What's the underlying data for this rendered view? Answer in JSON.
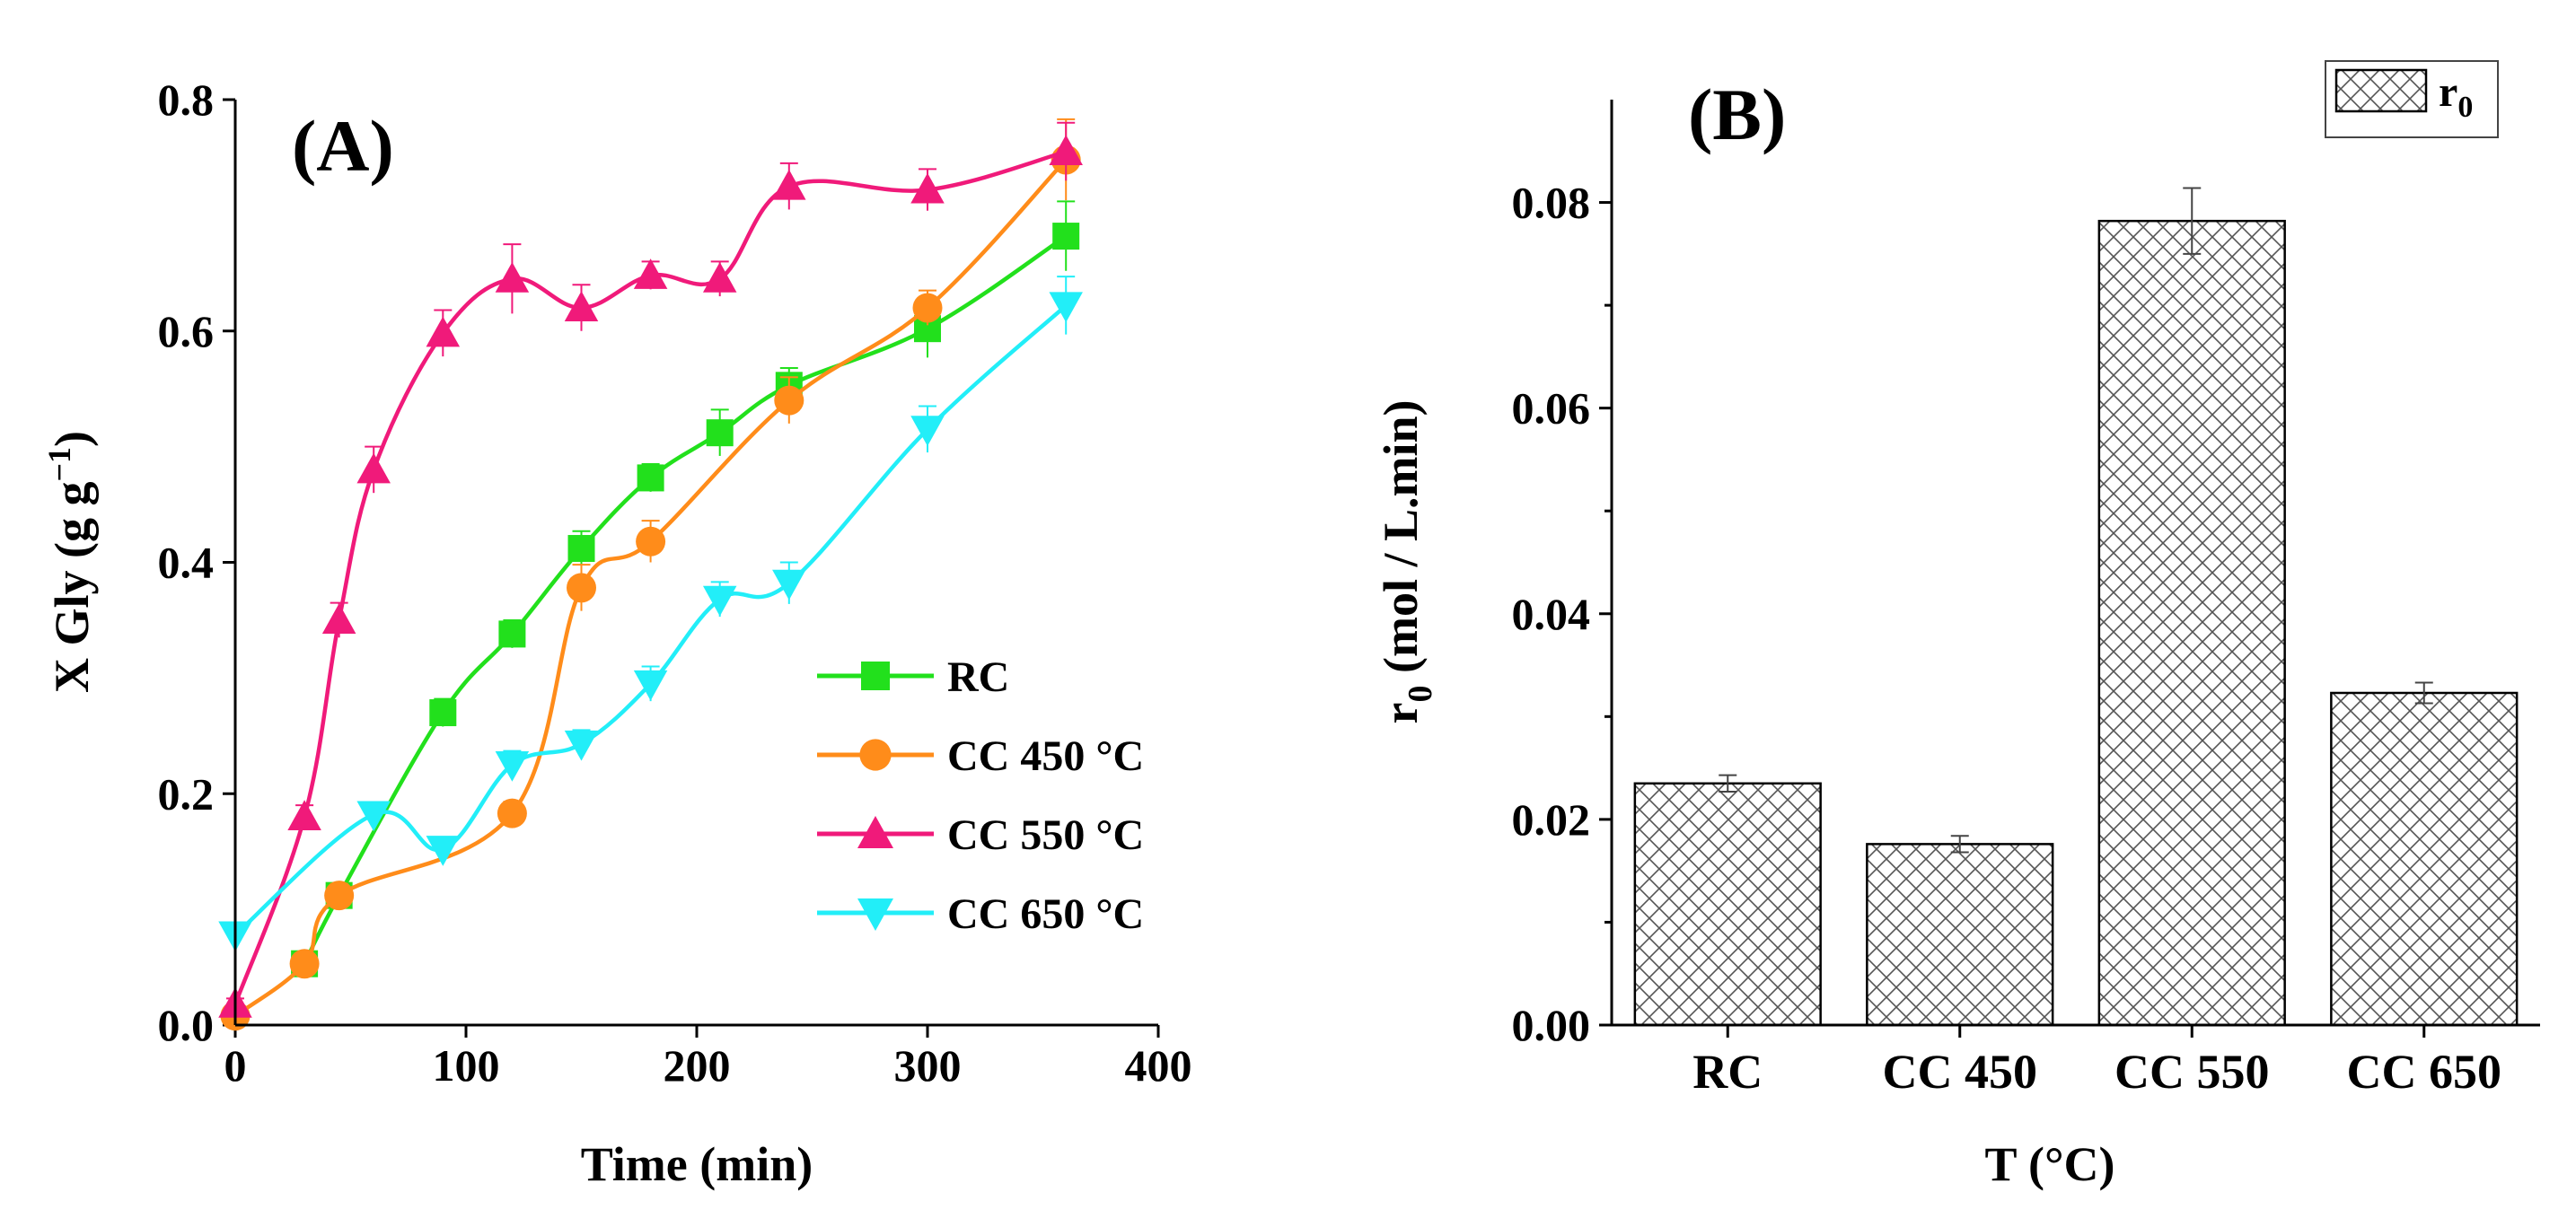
{
  "chart_data": [
    {
      "panel_label": "(A)",
      "type": "line",
      "title": "",
      "xlabel": "Time (min)",
      "ylabel": "X Gly (g g",
      "ylabel_sup": "−1",
      "ylabel_end": ")",
      "xlim": [
        0,
        400
      ],
      "ylim": [
        0,
        0.8
      ],
      "xticks": [
        0,
        100,
        200,
        300,
        400
      ],
      "yticks": [
        0.0,
        0.2,
        0.4,
        0.6,
        0.8
      ],
      "xtick_labels": [
        "0",
        "100",
        "200",
        "300",
        "400"
      ],
      "ytick_labels": [
        "0.0",
        "0.2",
        "0.4",
        "0.6",
        "0.8"
      ],
      "legend_position": "bottom-right",
      "series": [
        {
          "name": "RC",
          "color": "#22e01c",
          "marker": "square",
          "x": [
            30,
            45,
            90,
            120,
            150,
            180,
            210,
            240,
            300,
            360
          ],
          "y": [
            0.053,
            0.112,
            0.27,
            0.338,
            0.412,
            0.473,
            0.512,
            0.553,
            0.602,
            0.682
          ],
          "err": [
            0.008,
            0.01,
            0.012,
            0.012,
            0.015,
            0.012,
            0.02,
            0.015,
            0.025,
            0.03
          ]
        },
        {
          "name": "CC 450 °C",
          "color": "#ff8c1a",
          "marker": "circle",
          "x": [
            0,
            30,
            45,
            120,
            150,
            180,
            240,
            300,
            360
          ],
          "y": [
            0.008,
            0.053,
            0.112,
            0.183,
            0.378,
            0.418,
            0.54,
            0.62,
            0.748
          ],
          "err": [
            0.005,
            0.008,
            0.01,
            0.01,
            0.02,
            0.018,
            0.02,
            0.015,
            0.035
          ]
        },
        {
          "name": "CC 550 °C",
          "color": "#f01a7a",
          "marker": "triangle",
          "x": [
            0,
            30,
            45,
            60,
            90,
            120,
            150,
            180,
            210,
            240,
            300,
            360
          ],
          "y": [
            0.018,
            0.18,
            0.35,
            0.48,
            0.598,
            0.645,
            0.62,
            0.648,
            0.645,
            0.725,
            0.722,
            0.755
          ],
          "err": [
            0.005,
            0.01,
            0.015,
            0.02,
            0.02,
            0.03,
            0.02,
            0.012,
            0.015,
            0.02,
            0.018,
            0.025
          ]
        },
        {
          "name": "CC 650 °C",
          "color": "#22eef8",
          "marker": "triangle-down",
          "x": [
            0,
            60,
            90,
            120,
            150,
            180,
            210,
            240,
            300,
            360
          ],
          "y": [
            0.078,
            0.182,
            0.152,
            0.225,
            0.243,
            0.295,
            0.368,
            0.382,
            0.515,
            0.622
          ],
          "err": [
            0.005,
            0.008,
            0.01,
            0.012,
            0.012,
            0.015,
            0.015,
            0.018,
            0.02,
            0.025
          ]
        }
      ]
    },
    {
      "panel_label": "(B)",
      "type": "bar",
      "title": "",
      "xlabel": "T (°C)",
      "ylabel_prefix": "r",
      "ylabel_sub": "0",
      "ylabel_rest": " (mol / L.min)",
      "categories": [
        "RC",
        "CC 450",
        "CC 550",
        "CC 650"
      ],
      "values": [
        0.0235,
        0.0176,
        0.0782,
        0.0323
      ],
      "err": [
        0.0008,
        0.0008,
        0.0032,
        0.001
      ],
      "ylim": [
        0,
        0.09
      ],
      "yticks": [
        0.0,
        0.02,
        0.04,
        0.06,
        0.08
      ],
      "ytick_labels": [
        "0.00",
        "0.02",
        "0.04",
        "0.06",
        "0.08"
      ],
      "legend_position": "top-right",
      "legend_prefix": "r",
      "legend_sub": "0",
      "pattern": "crosshatch"
    }
  ]
}
